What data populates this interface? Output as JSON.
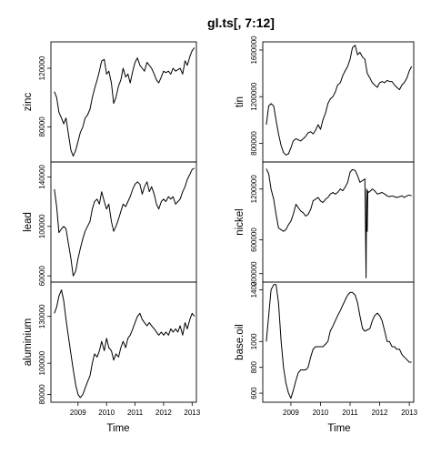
{
  "chart_data": {
    "type": "line",
    "title": "gl.ts[, 7:12]",
    "xlabel": "Time",
    "x_ticks": [
      2009,
      2010,
      2011,
      2012,
      2013
    ],
    "x_range": [
      2008.05,
      2013.15
    ],
    "panels": [
      {
        "name": "zinc",
        "column": 0,
        "ylim": [
          56000,
          138000
        ],
        "y_ticks": [
          80000,
          120000
        ],
        "x": [
          2008.17,
          2008.25,
          2008.33,
          2008.42,
          2008.5,
          2008.58,
          2008.67,
          2008.75,
          2008.83,
          2008.92,
          2009.0,
          2009.08,
          2009.17,
          2009.25,
          2009.33,
          2009.42,
          2009.5,
          2009.58,
          2009.67,
          2009.75,
          2009.83,
          2009.92,
          2010.0,
          2010.08,
          2010.17,
          2010.25,
          2010.33,
          2010.42,
          2010.5,
          2010.58,
          2010.67,
          2010.75,
          2010.83,
          2010.92,
          2011.0,
          2011.08,
          2011.17,
          2011.25,
          2011.33,
          2011.42,
          2011.5,
          2011.58,
          2011.67,
          2011.75,
          2011.83,
          2011.92,
          2012.0,
          2012.08,
          2012.17,
          2012.25,
          2012.33,
          2012.42,
          2012.5,
          2012.58,
          2012.67,
          2012.75,
          2012.83,
          2012.92,
          2013.0,
          2013.08
        ],
        "values": [
          104000,
          100000,
          90000,
          86000,
          82000,
          86000,
          74000,
          64000,
          60000,
          64000,
          70000,
          76000,
          80000,
          86000,
          88000,
          92000,
          100000,
          106000,
          112000,
          118000,
          125000,
          126000,
          116000,
          118000,
          110000,
          96000,
          100000,
          108000,
          112000,
          120000,
          114000,
          116000,
          110000,
          118000,
          124000,
          127000,
          122000,
          120000,
          118000,
          124000,
          122000,
          120000,
          116000,
          112000,
          110000,
          114000,
          118000,
          117000,
          118000,
          116000,
          120000,
          118000,
          119000,
          120000,
          116000,
          125000,
          122000,
          128000,
          132000,
          134000
        ]
      },
      {
        "name": "lead",
        "column": 0,
        "ylim": [
          55000,
          152000
        ],
        "y_ticks": [
          60000,
          100000,
          140000
        ],
        "x": [
          2008.17,
          2008.25,
          2008.33,
          2008.42,
          2008.5,
          2008.58,
          2008.67,
          2008.75,
          2008.83,
          2008.92,
          2009.0,
          2009.08,
          2009.17,
          2009.25,
          2009.33,
          2009.42,
          2009.5,
          2009.58,
          2009.67,
          2009.75,
          2009.83,
          2009.92,
          2010.0,
          2010.08,
          2010.17,
          2010.25,
          2010.33,
          2010.42,
          2010.5,
          2010.58,
          2010.67,
          2010.75,
          2010.83,
          2010.92,
          2011.0,
          2011.08,
          2011.17,
          2011.25,
          2011.33,
          2011.42,
          2011.5,
          2011.58,
          2011.67,
          2011.75,
          2011.83,
          2011.92,
          2012.0,
          2012.08,
          2012.17,
          2012.25,
          2012.33,
          2012.42,
          2012.5,
          2012.58,
          2012.67,
          2012.75,
          2012.83,
          2012.92,
          2013.0,
          2013.08
        ],
        "values": [
          130000,
          116000,
          95000,
          98000,
          100000,
          98000,
          85000,
          74000,
          60000,
          64000,
          74000,
          82000,
          90000,
          96000,
          100000,
          104000,
          114000,
          120000,
          122000,
          118000,
          128000,
          120000,
          114000,
          118000,
          104000,
          96000,
          100000,
          106000,
          112000,
          118000,
          116000,
          120000,
          124000,
          130000,
          134000,
          136000,
          134000,
          126000,
          132000,
          136000,
          128000,
          132000,
          126000,
          118000,
          114000,
          120000,
          122000,
          120000,
          124000,
          122000,
          124000,
          118000,
          120000,
          122000,
          128000,
          132000,
          138000,
          142000,
          146000,
          147000
        ]
      },
      {
        "name": "aluminium",
        "column": 0,
        "ylim": [
          75000,
          152000
        ],
        "y_ticks": [
          80000,
          100000,
          130000
        ],
        "x": [
          2008.17,
          2008.25,
          2008.33,
          2008.42,
          2008.5,
          2008.58,
          2008.67,
          2008.75,
          2008.83,
          2008.92,
          2009.0,
          2009.08,
          2009.17,
          2009.25,
          2009.33,
          2009.42,
          2009.5,
          2009.58,
          2009.67,
          2009.75,
          2009.83,
          2009.92,
          2010.0,
          2010.08,
          2010.17,
          2010.25,
          2010.33,
          2010.42,
          2010.5,
          2010.58,
          2010.67,
          2010.75,
          2010.83,
          2010.92,
          2011.0,
          2011.08,
          2011.17,
          2011.25,
          2011.33,
          2011.42,
          2011.5,
          2011.58,
          2011.67,
          2011.75,
          2011.83,
          2011.92,
          2012.0,
          2012.08,
          2012.17,
          2012.25,
          2012.33,
          2012.42,
          2012.5,
          2012.58,
          2012.67,
          2012.75,
          2012.83,
          2012.92,
          2013.0,
          2013.08
        ],
        "values": [
          132000,
          136000,
          143000,
          147000,
          140000,
          128000,
          116000,
          106000,
          96000,
          86000,
          80000,
          78000,
          80000,
          84000,
          88000,
          92000,
          100000,
          106000,
          104000,
          108000,
          114000,
          108000,
          116000,
          110000,
          108000,
          102000,
          106000,
          104000,
          110000,
          114000,
          110000,
          116000,
          118000,
          122000,
          126000,
          130000,
          132000,
          128000,
          126000,
          124000,
          126000,
          124000,
          122000,
          120000,
          118000,
          120000,
          118000,
          120000,
          118000,
          122000,
          120000,
          122000,
          120000,
          124000,
          118000,
          126000,
          122000,
          128000,
          132000,
          130000
        ]
      },
      {
        "name": "tin",
        "column": 1,
        "ylim": [
          640000,
          1670000
        ],
        "y_ticks": [
          800000,
          1200000,
          1600000
        ],
        "x": [
          2008.17,
          2008.25,
          2008.33,
          2008.42,
          2008.5,
          2008.58,
          2008.67,
          2008.75,
          2008.83,
          2008.92,
          2009.0,
          2009.08,
          2009.17,
          2009.25,
          2009.33,
          2009.42,
          2009.5,
          2009.58,
          2009.67,
          2009.75,
          2009.83,
          2009.92,
          2010.0,
          2010.08,
          2010.17,
          2010.25,
          2010.33,
          2010.42,
          2010.5,
          2010.58,
          2010.67,
          2010.75,
          2010.83,
          2010.92,
          2011.0,
          2011.08,
          2011.17,
          2011.25,
          2011.33,
          2011.42,
          2011.5,
          2011.58,
          2011.67,
          2011.75,
          2011.83,
          2011.92,
          2012.0,
          2012.08,
          2012.17,
          2012.25,
          2012.33,
          2012.42,
          2012.5,
          2012.58,
          2012.67,
          2012.75,
          2012.83,
          2012.92,
          2013.0,
          2013.08
        ],
        "values": [
          960000,
          1120000,
          1140000,
          1120000,
          1000000,
          880000,
          780000,
          720000,
          700000,
          710000,
          760000,
          820000,
          840000,
          830000,
          820000,
          840000,
          860000,
          890000,
          900000,
          880000,
          910000,
          960000,
          920000,
          1000000,
          1060000,
          1140000,
          1180000,
          1200000,
          1240000,
          1300000,
          1320000,
          1380000,
          1420000,
          1460000,
          1520000,
          1620000,
          1640000,
          1560000,
          1580000,
          1540000,
          1520000,
          1400000,
          1360000,
          1320000,
          1300000,
          1280000,
          1320000,
          1330000,
          1320000,
          1340000,
          1330000,
          1330000,
          1300000,
          1280000,
          1260000,
          1300000,
          1320000,
          1360000,
          1420000,
          1460000
        ]
      },
      {
        "name": "nickel",
        "column": 1,
        "ylim": [
          100000,
          1520000
        ],
        "y_ticks": [
          200000,
          600000,
          1200000
        ],
        "x": [
          2008.17,
          2008.25,
          2008.33,
          2008.42,
          2008.5,
          2008.58,
          2008.67,
          2008.75,
          2008.83,
          2008.92,
          2009.0,
          2009.08,
          2009.17,
          2009.25,
          2009.33,
          2009.42,
          2009.5,
          2009.58,
          2009.67,
          2009.75,
          2009.83,
          2009.92,
          2010.0,
          2010.08,
          2010.17,
          2010.25,
          2010.33,
          2010.42,
          2010.5,
          2010.58,
          2010.67,
          2010.75,
          2010.83,
          2010.92,
          2011.0,
          2011.08,
          2011.17,
          2011.25,
          2011.33,
          2011.42,
          2011.5,
          2011.52,
          2011.54,
          2011.56,
          2011.58,
          2011.6,
          2011.62,
          2011.67,
          2011.75,
          2011.83,
          2011.92,
          2012.0,
          2012.08,
          2012.17,
          2012.25,
          2012.33,
          2012.42,
          2012.5,
          2012.58,
          2012.67,
          2012.75,
          2012.83,
          2012.92,
          2013.0,
          2013.08
        ],
        "values": [
          1440000,
          1380000,
          1200000,
          1080000,
          900000,
          740000,
          720000,
          700000,
          720000,
          780000,
          820000,
          900000,
          1020000,
          980000,
          940000,
          920000,
          880000,
          900000,
          960000,
          1060000,
          1080000,
          1100000,
          1060000,
          1040000,
          1080000,
          1100000,
          1140000,
          1160000,
          1140000,
          1160000,
          1200000,
          1180000,
          1220000,
          1280000,
          1400000,
          1430000,
          1420000,
          1360000,
          1280000,
          1300000,
          1320000,
          800000,
          150000,
          1200000,
          700000,
          1180000,
          1160000,
          1170000,
          1200000,
          1180000,
          1140000,
          1150000,
          1160000,
          1140000,
          1120000,
          1110000,
          1120000,
          1110000,
          1100000,
          1110000,
          1120000,
          1100000,
          1120000,
          1130000,
          1120000
        ]
      },
      {
        "name": "base.oil",
        "column": 1,
        "ylim": [
          530,
          1460
        ],
        "y_ticks": [
          600,
          800,
          1000,
          1400
        ],
        "x": [
          2008.17,
          2008.25,
          2008.33,
          2008.42,
          2008.5,
          2008.58,
          2008.67,
          2008.75,
          2008.83,
          2008.92,
          2009.0,
          2009.08,
          2009.17,
          2009.25,
          2009.33,
          2009.42,
          2009.5,
          2009.58,
          2009.67,
          2009.75,
          2009.83,
          2009.92,
          2010.0,
          2010.08,
          2010.17,
          2010.25,
          2010.33,
          2010.42,
          2010.5,
          2010.58,
          2010.67,
          2010.75,
          2010.83,
          2010.92,
          2011.0,
          2011.08,
          2011.17,
          2011.25,
          2011.33,
          2011.42,
          2011.5,
          2011.58,
          2011.67,
          2011.75,
          2011.83,
          2011.92,
          2012.0,
          2012.08,
          2012.17,
          2012.25,
          2012.33,
          2012.42,
          2012.5,
          2012.58,
          2012.67,
          2012.75,
          2012.83,
          2012.92,
          2013.0,
          2013.08
        ],
        "values": [
          1000,
          1200,
          1400,
          1440,
          1440,
          1300,
          1000,
          800,
          680,
          600,
          560,
          620,
          700,
          760,
          780,
          780,
          780,
          800,
          880,
          940,
          960,
          960,
          960,
          960,
          980,
          1000,
          1080,
          1120,
          1160,
          1200,
          1240,
          1280,
          1320,
          1360,
          1380,
          1380,
          1360,
          1300,
          1200,
          1100,
          1080,
          1090,
          1100,
          1160,
          1200,
          1220,
          1200,
          1160,
          1080,
          1000,
          1000,
          960,
          960,
          940,
          940,
          900,
          880,
          860,
          840,
          840
        ]
      }
    ]
  }
}
